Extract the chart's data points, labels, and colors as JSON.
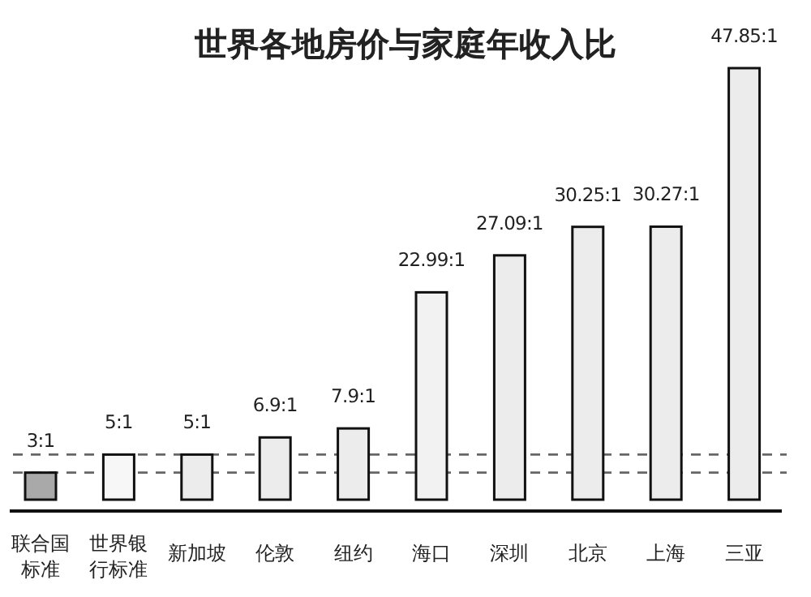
{
  "chart_data": {
    "type": "bar",
    "title": "世界各地房价与家庭年收入比",
    "categories": [
      "联合国标准",
      "世界银行标准",
      "新加坡",
      "伦敦",
      "纽约",
      "海口",
      "深圳",
      "北京",
      "上海",
      "三亚"
    ],
    "values": [
      3,
      5,
      5,
      6.9,
      7.9,
      22.99,
      27.09,
      30.25,
      30.27,
      47.85
    ],
    "value_labels": [
      "3:1",
      "5:1",
      "5:1",
      "6.9:1",
      "7.9:1",
      "22.99:1",
      "27.09:1",
      "30.25:1",
      "30.27:1",
      "47.85:1"
    ],
    "colors": [
      "#a9a9a9",
      "#f7f7f7",
      "#ececec",
      "#ececec",
      "#ececec",
      "#f2f2f2",
      "#ececec",
      "#ececec",
      "#ececec",
      "#ececec"
    ],
    "ref_lines": [
      {
        "axis": "y",
        "value": 3,
        "color": "#666666",
        "line_style": "dashed"
      },
      {
        "axis": "y",
        "value": 5,
        "color": "#666666",
        "line_style": "dashed"
      }
    ]
  }
}
